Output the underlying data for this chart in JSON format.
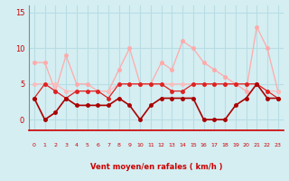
{
  "x": [
    0,
    1,
    2,
    3,
    4,
    5,
    6,
    7,
    8,
    9,
    10,
    11,
    12,
    13,
    14,
    15,
    16,
    17,
    18,
    19,
    20,
    21,
    22,
    23
  ],
  "line_rafales_light": [
    8,
    8,
    4,
    9,
    5,
    5,
    4,
    4,
    7,
    10,
    5,
    5,
    8,
    7,
    11,
    10,
    8,
    7,
    6,
    5,
    4,
    13,
    10,
    4
  ],
  "line_moyen_light": [
    5,
    5,
    5,
    4,
    4,
    4,
    4,
    4,
    5,
    5,
    5,
    5,
    5,
    5,
    5,
    5,
    5,
    5,
    5,
    5,
    5,
    5,
    4,
    4
  ],
  "line_rafales_dark": [
    3,
    5,
    4,
    3,
    4,
    4,
    4,
    3,
    5,
    5,
    5,
    5,
    5,
    4,
    4,
    5,
    5,
    5,
    5,
    5,
    5,
    5,
    4,
    3
  ],
  "line_moyen_dark": [
    3,
    0,
    1,
    3,
    2,
    2,
    2,
    2,
    3,
    2,
    0,
    2,
    3,
    3,
    3,
    3,
    0,
    0,
    0,
    2,
    3,
    5,
    3,
    3
  ],
  "background_color": "#d4eef2",
  "grid_color": "#b8dde4",
  "line_rafales_light_color": "#ffaaaa",
  "line_moyen_light_color": "#ffbbbb",
  "line_rafales_dark_color": "#dd2222",
  "line_moyen_dark_color": "#aa0000",
  "axis_color": "#cc0000",
  "xlabel": "Vent moyen/en rafales ( km/h )",
  "ylim": [
    -1.5,
    16
  ],
  "xlim": [
    -0.5,
    23.5
  ]
}
